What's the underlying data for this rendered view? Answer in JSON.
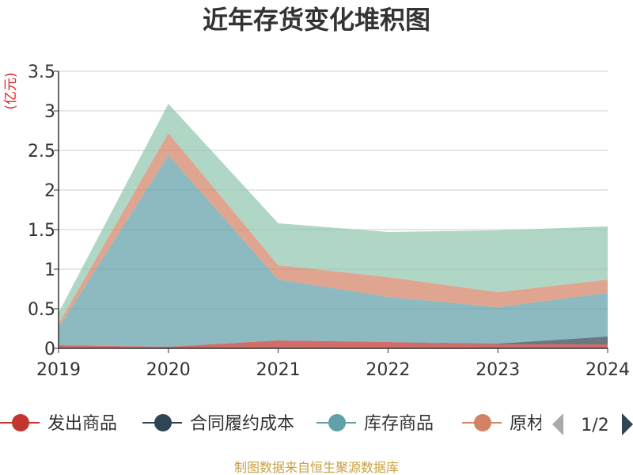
{
  "chart_data": {
    "type": "area",
    "stacked": true,
    "title": "近年存货变化堆积图",
    "unit": "(亿元)",
    "categories": [
      "2019",
      "2020",
      "2021",
      "2022",
      "2023",
      "2024"
    ],
    "ylim": [
      0,
      3.5
    ],
    "yticks": [
      "0",
      "0.5",
      "1",
      "1.5",
      "2",
      "2.5",
      "3",
      "3.5"
    ],
    "grid": true,
    "legend_position": "bottom",
    "series": [
      {
        "name": "发出商品",
        "color": "#c23531",
        "values": [
          0.04,
          0.02,
          0.1,
          0.08,
          0.05,
          0.05
        ],
        "legend": true
      },
      {
        "name": "合同履约成本",
        "color": "#2f4554",
        "values": [
          0,
          0,
          0,
          0,
          0.01,
          0.1
        ],
        "legend": true
      },
      {
        "name": "库存商品",
        "color": "#61a0a8",
        "values": [
          0.22,
          2.42,
          0.77,
          0.57,
          0.46,
          0.55
        ],
        "legend": true
      },
      {
        "name": "原材料",
        "color": "#d48265",
        "values": [
          0.05,
          0.28,
          0.18,
          0.25,
          0.19,
          0.17
        ],
        "legend": true
      },
      {
        "name": "",
        "color": "#91c7ae",
        "values": [
          0.14,
          0.37,
          0.53,
          0.57,
          0.78,
          0.67
        ],
        "legend": false
      }
    ]
  },
  "legend": {
    "items": [
      "发出商品",
      "合同履约成本",
      "库存商品",
      "原材"
    ],
    "page": "1/2"
  },
  "source": "制图数据来自恒生聚源数据库"
}
